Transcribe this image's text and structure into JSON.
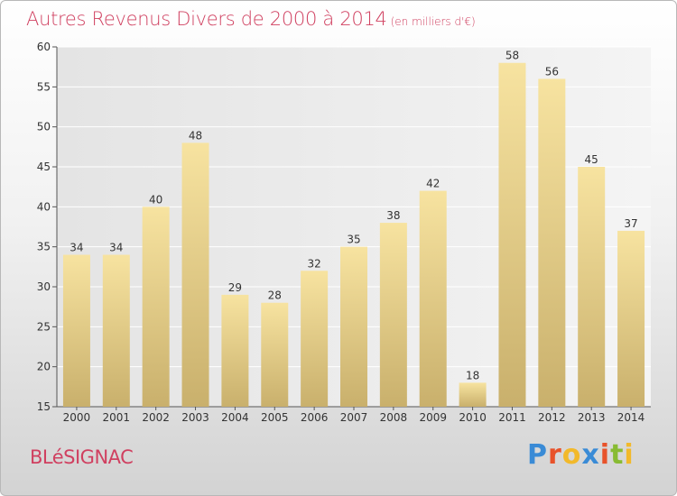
{
  "chart_data": {
    "type": "bar",
    "title": "Autres Revenus Divers de 2000 à 2014",
    "subtitle": "(en milliers d'€)",
    "categories": [
      "2000",
      "2001",
      "2002",
      "2003",
      "2004",
      "2005",
      "2006",
      "2007",
      "2008",
      "2009",
      "2010",
      "2011",
      "2012",
      "2013",
      "2014"
    ],
    "values": [
      34,
      34,
      40,
      48,
      29,
      28,
      32,
      35,
      38,
      42,
      18,
      58,
      56,
      45,
      37
    ],
    "ylim": [
      15,
      60
    ],
    "yticks": [
      15,
      20,
      25,
      30,
      35,
      40,
      45,
      50,
      55,
      60
    ],
    "xlabel": "",
    "ylabel": "",
    "grid": true,
    "bar_color_light": "#f7e3a0",
    "bar_color_dark": "#c9b06c"
  },
  "footer": {
    "place": "BLéSIGNAC",
    "brand": "Proxiti",
    "brand_colors": [
      "#3a8bd6",
      "#e8522a",
      "#f2b92b",
      "#3a8bd6",
      "#e8522a",
      "#88bb33",
      "#f2b92b"
    ]
  }
}
